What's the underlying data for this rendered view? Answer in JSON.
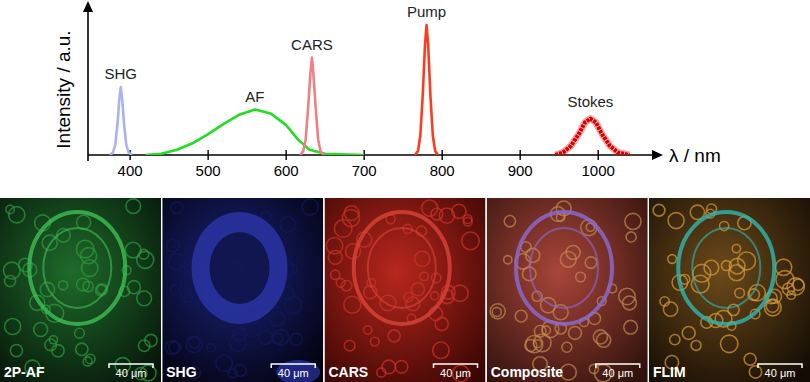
{
  "chart_data": {
    "type": "line",
    "x_label": "λ / nm",
    "y_label": "Intensity / a.u.",
    "xlim": [
      346,
      1060
    ],
    "ylim": [
      0,
      1.1
    ],
    "xticks": [
      400,
      500,
      600,
      700,
      800,
      900,
      1000
    ],
    "tick_labels": "x",
    "series": [
      {
        "name": "SHG",
        "color": "#a9b3f2",
        "x": [
          374,
          378,
          381,
          384,
          386,
          388,
          390,
          392,
          395,
          398,
          402
        ],
        "values": [
          0,
          0.02,
          0.08,
          0.25,
          0.42,
          0.52,
          0.42,
          0.25,
          0.08,
          0.02,
          0
        ]
      },
      {
        "name": "AF",
        "color": "#22dd22",
        "x": [
          420,
          440,
          460,
          480,
          500,
          520,
          540,
          560,
          580,
          600,
          615,
          630,
          650,
          700
        ],
        "values": [
          0,
          0.01,
          0.04,
          0.09,
          0.16,
          0.24,
          0.31,
          0.35,
          0.32,
          0.23,
          0.12,
          0.04,
          0.01,
          0
        ]
      },
      {
        "name": "CARS",
        "color": "#f07f86",
        "x": [
          618,
          622,
          625,
          628,
          631,
          633,
          635,
          638,
          641,
          644,
          648
        ],
        "values": [
          0,
          0.03,
          0.12,
          0.35,
          0.62,
          0.75,
          0.62,
          0.35,
          0.12,
          0.03,
          0
        ]
      },
      {
        "name": "Pump",
        "color": "#ff3b1f",
        "x": [
          765,
          769,
          772,
          775,
          778,
          780,
          782,
          785,
          788,
          791,
          795
        ],
        "values": [
          0,
          0.03,
          0.15,
          0.45,
          0.85,
          1.0,
          0.85,
          0.45,
          0.15,
          0.03,
          0
        ]
      },
      {
        "name": "Stokes",
        "color": "#d40000",
        "line_style": "thick",
        "x": [
          945,
          955,
          965,
          975,
          983,
          990,
          997,
          1005,
          1015,
          1025,
          1040
        ],
        "values": [
          0,
          0.02,
          0.07,
          0.16,
          0.25,
          0.28,
          0.25,
          0.16,
          0.07,
          0.02,
          0
        ]
      }
    ]
  },
  "panels": [
    {
      "label": "2P-AF",
      "scale_bar": "40 μm"
    },
    {
      "label": "SHG",
      "scale_bar": "40 μm"
    },
    {
      "label": "CARS",
      "scale_bar": "40 μm"
    },
    {
      "label": "Composite",
      "scale_bar": "40 μm"
    },
    {
      "label": "FLIM",
      "scale_bar": "40 μm"
    }
  ]
}
